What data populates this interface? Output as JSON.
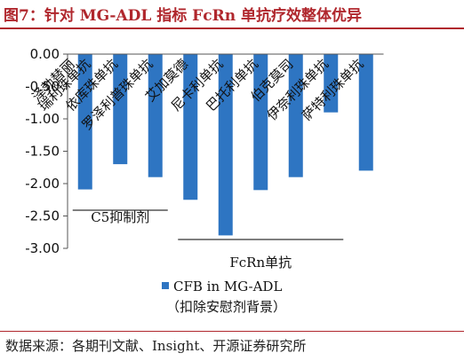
{
  "figure": {
    "title": "图7：针对 MG-ADL 指标 FcRn 单抗疗效整体优异",
    "source": "数据来源：各期刊文献、Insight、开源证券研究所"
  },
  "colors": {
    "bar": "#2e75c2",
    "title": "#b0272d",
    "text": "#111111"
  },
  "chart_data": {
    "type": "bar",
    "title": "",
    "xlabel": "",
    "ylabel": "",
    "ylim": [
      -3.0,
      0.0
    ],
    "yticks": [
      "0.00",
      "-0.50",
      "-1.00",
      "-1.50",
      "-2.00",
      "-2.50",
      "-3.00"
    ],
    "ytick_values": [
      0,
      -0.5,
      -1.0,
      -1.5,
      -2.0,
      -2.5,
      -3.0
    ],
    "grid": false,
    "legend_position": "bottom",
    "categories": [
      "泽勃替丽瑞利珠单抗",
      "依库珠单抗",
      "罗泽利普珠单抗",
      "艾加莫德",
      "尼卡利单抗",
      "巴托利单抗",
      "伯克莫司",
      "伊奈利珠单抗",
      "萨特利珠单抗"
    ],
    "label_rows": [
      [
        "泽勃替丽",
        "瑞利珠单抗"
      ],
      [
        "依库珠单抗"
      ],
      [
        "罗泽利普珠单抗"
      ],
      [
        "艾加莫德"
      ],
      [
        "尼卡利单抗"
      ],
      [
        "巴托利单抗"
      ],
      [
        "伯克莫司"
      ],
      [
        "伊奈利珠单抗"
      ],
      [
        "萨特利珠单抗"
      ]
    ],
    "series": [
      {
        "name": "CFB in MG-ADL",
        "values": [
          -2.09,
          -1.7,
          -1.9,
          -2.25,
          -2.8,
          -2.1,
          -1.9,
          -0.9,
          -1.8
        ]
      }
    ],
    "legend_note": "（扣除安慰剂背景）",
    "groups": [
      {
        "label": "C5抑制剂",
        "from": 0,
        "to": 2
      },
      {
        "label": "FcRn单抗",
        "from": 3,
        "to": 7
      }
    ]
  }
}
